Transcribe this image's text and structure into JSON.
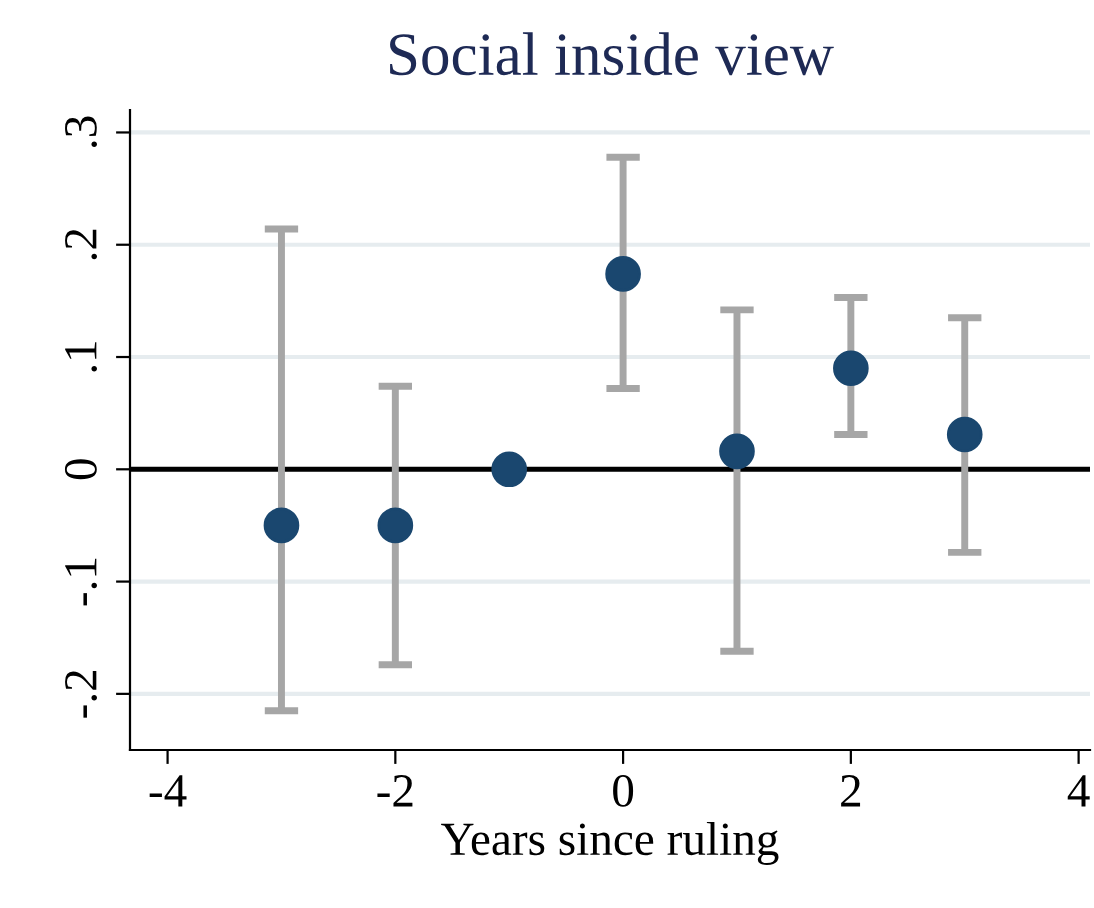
{
  "chart_data": {
    "type": "scatter",
    "title": "Social inside view",
    "xlabel": "Years since ruling",
    "x": [
      -3,
      -2,
      -1,
      0,
      1,
      2,
      3
    ],
    "series": [
      {
        "color": "#1a476f",
        "values": [
          -0.05,
          -0.05,
          0,
          0.174,
          0.016,
          0.09,
          0.031
        ],
        "errors": [
          [
            -0.215,
            0.214
          ],
          [
            -0.174,
            0.074
          ],
          null,
          [
            0.072,
            0.278
          ],
          [
            -0.162,
            0.142
          ],
          [
            0.031,
            0.153
          ],
          [
            -0.074,
            0.135
          ]
        ]
      }
    ],
    "xlim": [
      -4.33,
      4.1
    ],
    "ylim": [
      -0.25,
      0.32
    ],
    "xticks": [
      {
        "value": -4,
        "label": "-4"
      },
      {
        "value": -2,
        "label": "-2"
      },
      {
        "value": 0,
        "label": "0"
      },
      {
        "value": 2,
        "label": "2"
      },
      {
        "value": 4,
        "label": "4"
      }
    ],
    "yticks": [
      {
        "value": -0.2,
        "label": "-.2"
      },
      {
        "value": -0.1,
        "label": "-.1"
      },
      {
        "value": 0,
        "label": "0"
      },
      {
        "value": 0.1,
        "label": ".1"
      },
      {
        "value": 0.2,
        "label": ".2"
      },
      {
        "value": 0.3,
        "label": ".3"
      }
    ],
    "ref_lines": [
      {
        "axis": "y",
        "value": 0,
        "color": "#000000"
      }
    ],
    "grid": "y",
    "marker": "circle"
  }
}
